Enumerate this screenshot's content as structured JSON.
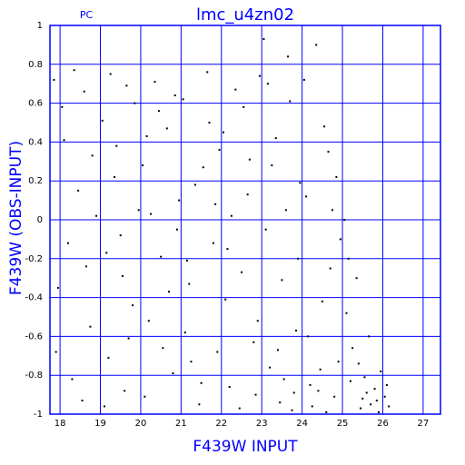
{
  "chart_data": {
    "type": "scatter",
    "title": "lmc_u4zn02",
    "annotation": "PC",
    "x_label": "F439W INPUT",
    "y_label": "F439W (OBS-INPUT)",
    "color": "#000000",
    "grid": true,
    "grid_color": "#0000ff",
    "xlim": [
      17.75,
      27.43
    ],
    "ylim": [
      -1,
      1
    ],
    "xticks": [
      18,
      19,
      20,
      21,
      22,
      23,
      24,
      25,
      26,
      27
    ],
    "yticks": [
      1,
      0.8,
      0.6,
      0.4,
      0.2,
      0,
      -0.2,
      -0.4,
      -0.6,
      -0.8,
      -1
    ],
    "x": [
      17.85,
      17.95,
      18.1,
      18.3,
      18.45,
      18.6,
      18.75,
      18.9,
      18.2,
      18.55,
      18.05,
      18.8,
      17.9,
      18.35,
      18.65,
      19.05,
      19.2,
      19.35,
      19.5,
      19.65,
      19.8,
      19.95,
      19.1,
      19.4,
      19.7,
      19.25,
      19.55,
      19.85,
      19.15,
      19.6,
      20.05,
      20.2,
      20.35,
      20.5,
      20.65,
      20.8,
      20.95,
      20.1,
      20.45,
      20.7,
      20.25,
      20.85,
      20.55,
      20.15,
      20.9,
      21.05,
      21.2,
      21.35,
      21.5,
      21.65,
      21.8,
      21.95,
      21.1,
      21.45,
      21.7,
      21.25,
      21.85,
      21.55,
      21.15,
      21.9,
      22.05,
      22.2,
      22.35,
      22.5,
      22.65,
      22.8,
      22.95,
      22.1,
      22.45,
      22.7,
      22.25,
      22.85,
      22.55,
      22.15,
      22.9,
      23.05,
      23.2,
      23.35,
      23.5,
      23.65,
      23.8,
      23.95,
      23.1,
      23.45,
      23.7,
      23.25,
      23.85,
      23.55,
      23.15,
      23.9,
      23.4,
      23.6,
      23.75,
      24.05,
      24.2,
      24.35,
      24.5,
      24.65,
      24.8,
      24.95,
      24.1,
      24.45,
      24.7,
      24.25,
      24.85,
      24.55,
      24.15,
      24.9,
      24.4,
      24.6,
      24.75,
      25.05,
      25.2,
      25.35,
      25.5,
      25.65,
      25.8,
      25.95,
      25.1,
      25.45,
      25.7,
      25.25,
      25.85,
      25.55,
      25.15,
      25.9,
      25.4,
      25.6,
      26.05,
      26.15,
      26.1
    ],
    "y": [
      0.72,
      -0.35,
      0.41,
      -0.82,
      0.15,
      0.66,
      -0.55,
      0.02,
      -0.12,
      -0.93,
      0.58,
      0.33,
      -0.68,
      0.77,
      -0.24,
      0.51,
      -0.71,
      0.22,
      -0.08,
      0.69,
      -0.44,
      0.05,
      -0.96,
      0.38,
      -0.61,
      0.75,
      -0.29,
      0.6,
      -0.17,
      -0.88,
      0.28,
      -0.52,
      0.71,
      -0.19,
      0.47,
      -0.79,
      0.1,
      -0.91,
      0.56,
      -0.37,
      0.03,
      0.64,
      -0.66,
      0.43,
      -0.05,
      0.62,
      -0.33,
      0.18,
      -0.84,
      0.76,
      -0.12,
      0.36,
      -0.58,
      -0.95,
      0.5,
      -0.73,
      0.08,
      0.27,
      -0.21,
      -0.68,
      0.45,
      -0.86,
      0.67,
      -0.27,
      0.13,
      -0.63,
      0.74,
      -0.41,
      -0.97,
      0.31,
      0.02,
      -0.9,
      0.58,
      -0.15,
      -0.52,
      0.93,
      -0.76,
      0.42,
      -0.31,
      0.84,
      -0.89,
      0.19,
      -0.05,
      -0.94,
      0.61,
      0.28,
      -0.57,
      -0.82,
      0.7,
      -0.2,
      -0.67,
      0.05,
      -0.98,
      0.72,
      -0.85,
      0.9,
      -0.42,
      0.35,
      -0.91,
      -0.1,
      0.12,
      -0.77,
      -0.25,
      -0.96,
      0.22,
      0.48,
      -0.6,
      -0.73,
      -0.88,
      -0.99,
      0.05,
      0.0,
      -0.83,
      -0.3,
      -0.92,
      -0.6,
      -0.87,
      -0.78,
      -0.48,
      -0.97,
      -0.95,
      -0.66,
      -0.93,
      -0.81,
      -0.2,
      -0.99,
      -0.74,
      -0.89,
      -0.91,
      -0.96,
      -0.85
    ]
  }
}
